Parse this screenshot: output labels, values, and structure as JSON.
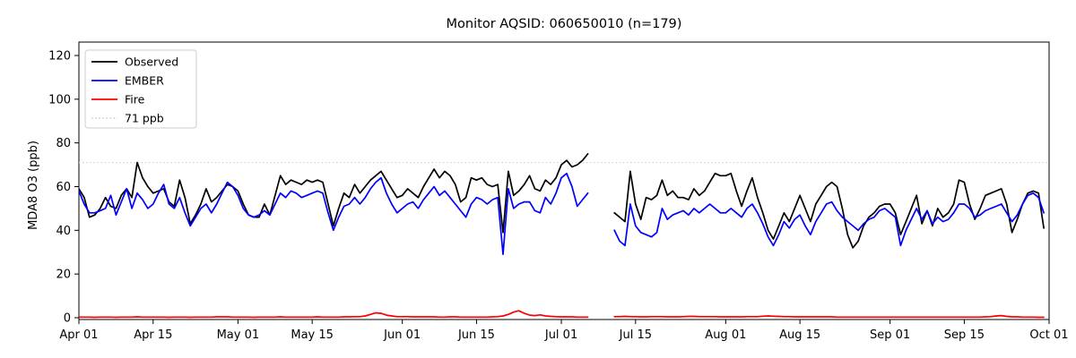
{
  "figure": {
    "title": "Monitor AQSID: 060650010 (n=179)"
  },
  "chart_data": {
    "type": "line",
    "title": "Monitor AQSID: 060650010 (n=179)",
    "xlabel": "",
    "ylabel": "MDA8 O3 (ppb)",
    "ylim": [
      0,
      126
    ],
    "yticks": [
      0,
      20,
      40,
      60,
      80,
      100,
      120
    ],
    "xtick_labels": [
      "Apr 01",
      "Apr 15",
      "May 01",
      "May 15",
      "Jun 01",
      "Jun 15",
      "Jul 01",
      "Jul 15",
      "Aug 01",
      "Aug 15",
      "Sep 01",
      "Sep 15",
      "Oct 01"
    ],
    "xtick_day_index": [
      0,
      14,
      30,
      44,
      61,
      75,
      91,
      105,
      122,
      136,
      153,
      167,
      183
    ],
    "x_start_label": "Apr 01",
    "x_end_label": "Oct 01",
    "n_days_axis": 183,
    "grid": false,
    "threshold": {
      "label": "71 ppb",
      "value": 71,
      "color": "#d3d3d3",
      "style": "dotted"
    },
    "legend": {
      "position": "upper-left",
      "entries": [
        "Observed",
        "EMBER",
        "Fire",
        "71 ppb"
      ]
    },
    "series": [
      {
        "name": "Observed",
        "color": "#000000",
        "style": "solid",
        "values": [
          59,
          55,
          46,
          47,
          50,
          55,
          51,
          50,
          56,
          59,
          55,
          71,
          64,
          60,
          57,
          58,
          59,
          53,
          51,
          63,
          55,
          43,
          47,
          52,
          59,
          53,
          55,
          58,
          61,
          60,
          58,
          52,
          47,
          46,
          46,
          52,
          47,
          56,
          65,
          61,
          63,
          62,
          61,
          63,
          62,
          63,
          62,
          52,
          42,
          50,
          57,
          55,
          61,
          57,
          60,
          63,
          65,
          67,
          63,
          59,
          55,
          56,
          59,
          57,
          55,
          60,
          64,
          68,
          64,
          67,
          65,
          61,
          53,
          55,
          64,
          63,
          64,
          61,
          60,
          61,
          39,
          67,
          56,
          58,
          61,
          65,
          59,
          58,
          63,
          61,
          64,
          70,
          72,
          69,
          70,
          72,
          75,
          null,
          null,
          null,
          null,
          48,
          46,
          44,
          67,
          52,
          45,
          55,
          54,
          56,
          63,
          56,
          58,
          55,
          55,
          54,
          59,
          56,
          58,
          62,
          66,
          65,
          65,
          66,
          58,
          51,
          58,
          64,
          55,
          48,
          40,
          36,
          42,
          48,
          44,
          50,
          56,
          50,
          44,
          52,
          56,
          60,
          62,
          60,
          50,
          38,
          32,
          35,
          42,
          46,
          48,
          51,
          52,
          52,
          48,
          38,
          44,
          50,
          56,
          43,
          49,
          42,
          50,
          46,
          48,
          52,
          63,
          62,
          52,
          45,
          50,
          56,
          57,
          58,
          59,
          52,
          39,
          45,
          52,
          57,
          58,
          57,
          41
        ]
      },
      {
        "name": "EMBER",
        "color": "#0000ff",
        "style": "solid",
        "values": [
          58,
          52,
          48,
          48,
          49,
          50,
          56,
          47,
          53,
          59,
          50,
          57,
          54,
          50,
          52,
          57,
          61,
          52,
          50,
          55,
          48,
          42,
          46,
          50,
          52,
          48,
          52,
          57,
          62,
          60,
          56,
          50,
          47,
          46,
          47,
          49,
          47,
          52,
          57,
          55,
          58,
          57,
          55,
          56,
          57,
          58,
          57,
          48,
          40,
          46,
          51,
          52,
          55,
          52,
          55,
          59,
          62,
          64,
          57,
          52,
          48,
          50,
          52,
          53,
          50,
          54,
          57,
          60,
          56,
          58,
          55,
          52,
          49,
          46,
          52,
          55,
          54,
          52,
          54,
          55,
          29,
          59,
          50,
          52,
          53,
          53,
          49,
          48,
          55,
          52,
          57,
          64,
          66,
          60,
          51,
          54,
          57,
          null,
          null,
          null,
          null,
          40,
          35,
          33,
          52,
          42,
          39,
          38,
          37,
          39,
          50,
          45,
          47,
          48,
          49,
          47,
          50,
          48,
          50,
          52,
          50,
          48,
          48,
          50,
          48,
          46,
          50,
          52,
          48,
          43,
          37,
          33,
          38,
          44,
          41,
          45,
          47,
          42,
          38,
          44,
          48,
          52,
          53,
          49,
          46,
          44,
          42,
          40,
          43,
          45,
          46,
          49,
          50,
          48,
          46,
          33,
          40,
          45,
          50,
          45,
          49,
          43,
          46,
          44,
          45,
          48,
          52,
          52,
          50,
          46,
          47,
          49,
          50,
          51,
          52,
          48,
          44,
          47,
          52,
          56,
          57,
          55,
          48
        ]
      },
      {
        "name": "Fire",
        "color": "#ff0000",
        "style": "solid",
        "values": [
          0.3,
          0.3,
          0.3,
          0.2,
          0.3,
          0.3,
          0.3,
          0.2,
          0.3,
          0.3,
          0.3,
          0.4,
          0.3,
          0.3,
          0.3,
          0.3,
          0.3,
          0.2,
          0.3,
          0.3,
          0.3,
          0.2,
          0.3,
          0.3,
          0.3,
          0.3,
          0.4,
          0.4,
          0.4,
          0.3,
          0.3,
          0.3,
          0.3,
          0.2,
          0.3,
          0.3,
          0.3,
          0.3,
          0.4,
          0.3,
          0.3,
          0.3,
          0.3,
          0.3,
          0.3,
          0.4,
          0.3,
          0.3,
          0.3,
          0.3,
          0.4,
          0.4,
          0.5,
          0.5,
          0.8,
          1.5,
          2.2,
          2.0,
          1.2,
          0.8,
          0.5,
          0.5,
          0.5,
          0.4,
          0.4,
          0.4,
          0.4,
          0.4,
          0.3,
          0.3,
          0.4,
          0.4,
          0.3,
          0.3,
          0.3,
          0.3,
          0.3,
          0.3,
          0.4,
          0.5,
          0.8,
          1.5,
          2.6,
          3.2,
          2.0,
          1.2,
          1.0,
          1.3,
          0.8,
          0.6,
          0.5,
          0.4,
          0.4,
          0.4,
          0.3,
          0.3,
          0.3,
          null,
          null,
          null,
          null,
          0.5,
          0.5,
          0.6,
          0.5,
          0.5,
          0.4,
          0.4,
          0.5,
          0.5,
          0.5,
          0.4,
          0.4,
          0.4,
          0.5,
          0.6,
          0.6,
          0.5,
          0.5,
          0.5,
          0.5,
          0.4,
          0.4,
          0.4,
          0.4,
          0.4,
          0.5,
          0.5,
          0.5,
          0.7,
          0.8,
          0.7,
          0.6,
          0.5,
          0.5,
          0.4,
          0.4,
          0.4,
          0.4,
          0.4,
          0.4,
          0.4,
          0.4,
          0.3,
          0.3,
          0.3,
          0.3,
          0.3,
          0.3,
          0.3,
          0.3,
          0.3,
          0.3,
          0.3,
          0.3,
          0.3,
          0.3,
          0.3,
          0.3,
          0.3,
          0.3,
          0.3,
          0.3,
          0.3,
          0.3,
          0.3,
          0.3,
          0.3,
          0.3,
          0.3,
          0.3,
          0.4,
          0.5,
          0.8,
          1.0,
          0.6,
          0.4,
          0.4,
          0.3,
          0.3,
          0.3,
          0.2,
          0.2
        ]
      }
    ]
  }
}
